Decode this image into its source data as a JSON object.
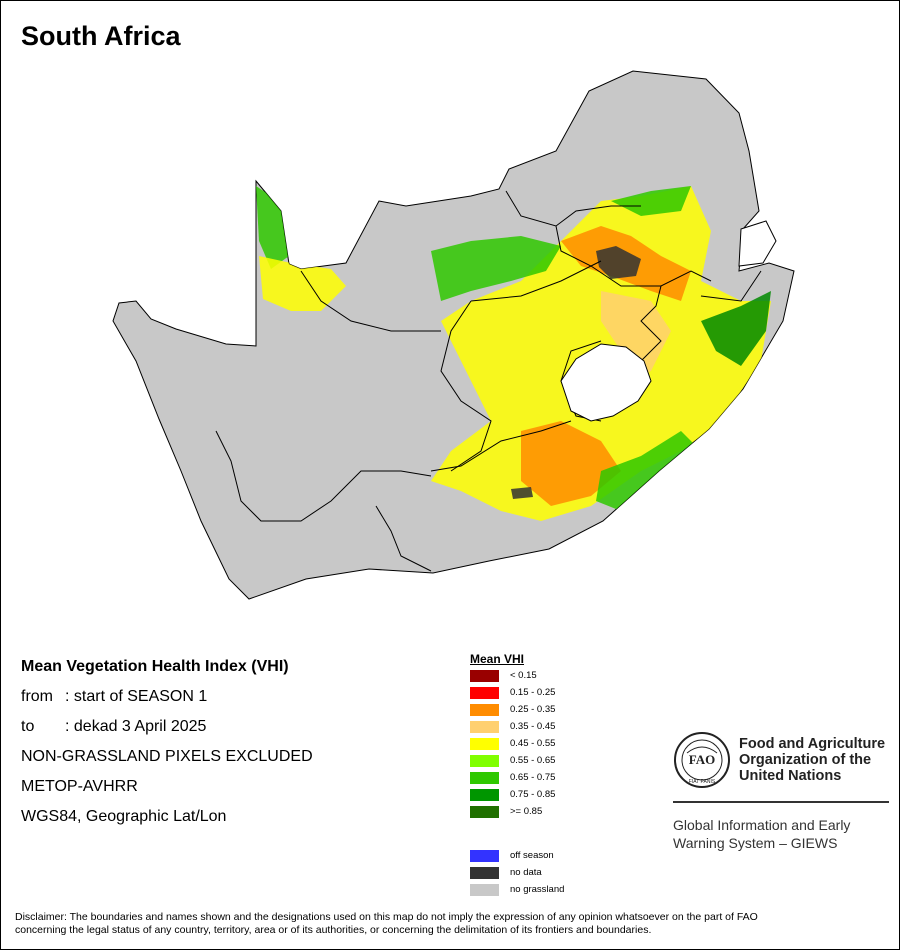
{
  "map": {
    "title": "South Africa",
    "colors": {
      "land": "#c8c8c8",
      "border": "#000000",
      "lesotho": "#ffffff",
      "veg_yellow": "#ffff00",
      "veg_light_orange": "#ffd070",
      "veg_orange": "#ff8c00",
      "veg_green": "#2fc800",
      "veg_dark_green": "#008a00",
      "no_data": "#333333"
    }
  },
  "info": {
    "title": "Mean Vegetation Health Index (VHI)",
    "from_label": "from",
    "from_value": ": start of SEASON 1",
    "to_label": "to",
    "to_value": ": dekad 3 April 2025",
    "exclusion": "NON-GRASSLAND PIXELS EXCLUDED",
    "sensor": "METOP-AVHRR",
    "projection": "WGS84, Geographic Lat/Lon"
  },
  "legend": {
    "title": "Mean VHI",
    "classes": [
      {
        "label": "< 0.15",
        "color": "#990000"
      },
      {
        "label": "0.15 - 0.25",
        "color": "#ff0000"
      },
      {
        "label": "0.25 - 0.35",
        "color": "#ff8c00"
      },
      {
        "label": "0.35 - 0.45",
        "color": "#ffd070"
      },
      {
        "label": "0.45 - 0.55",
        "color": "#ffff00"
      },
      {
        "label": "0.55 - 0.65",
        "color": "#80ff00"
      },
      {
        "label": "0.65 - 0.75",
        "color": "#2fc800"
      },
      {
        "label": "0.75 - 0.85",
        "color": "#009600"
      },
      {
        "label": ">= 0.85",
        "color": "#207000"
      }
    ],
    "extra": [
      {
        "label": "off season",
        "color": "#3333ff"
      },
      {
        "label": "no data",
        "color": "#333333"
      },
      {
        "label": "no grassland",
        "color": "#c8c8c8"
      }
    ]
  },
  "organization": {
    "logo_text": "FAO",
    "logo_motto": "FIAT PANIS",
    "name_line1": "Food and Agriculture",
    "name_line2": "Organization of the",
    "name_line3": "United Nations",
    "system_line1": "Global Information and Early",
    "system_line2": "Warning System – GIEWS"
  },
  "disclaimer": {
    "line1": "Disclaimer: The boundaries and names shown and the designations used on this map do not imply the expression of any opinion whatsoever on the part of FAO",
    "line2": "concerning the legal status of any country, territory, area or of its authorities, or concerning the delimitation of its frontiers and boundaries."
  }
}
